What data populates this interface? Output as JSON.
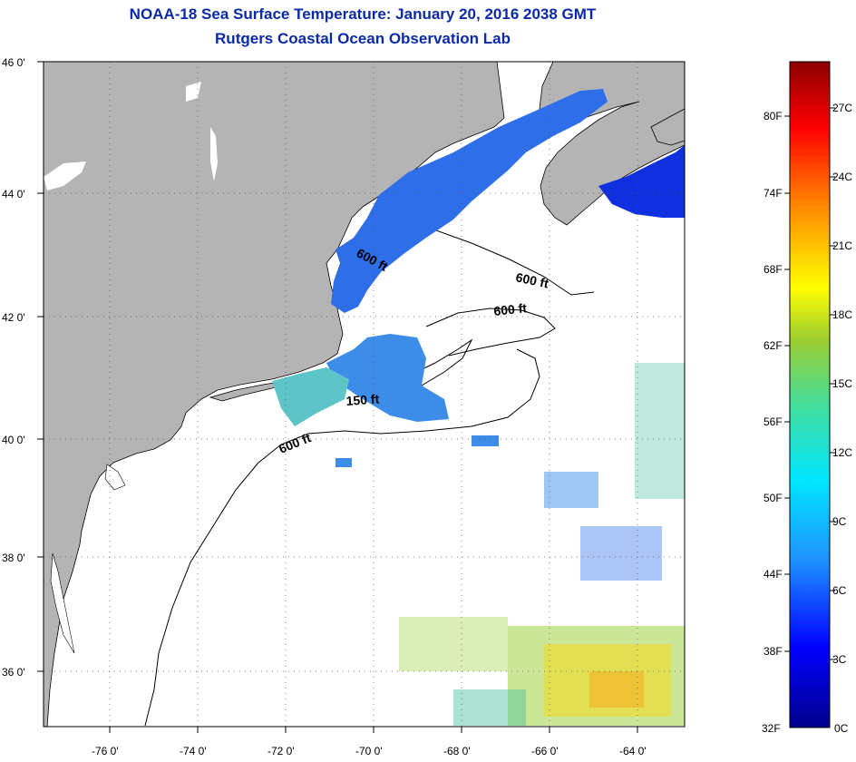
{
  "title": "NOAA-18 Sea Surface Temperature:  January 20, 2016 2038 GMT",
  "subtitle": "Rutgers Coastal Ocean Observation Lab",
  "map": {
    "lon_labels": [
      "-76 0'",
      "-74 0'",
      "-72 0'",
      "-70 0'",
      "-68 0'",
      "-66 0'",
      "-64 0'"
    ],
    "lat_labels": [
      "46 0'",
      "44 0'",
      "42 0'",
      "40 0'",
      "38 0'",
      "36 0'"
    ],
    "contour_labels": [
      {
        "text": "600 ft",
        "rotate": 28
      },
      {
        "text": "600 ft",
        "rotate": 12
      },
      {
        "text": "600 ft",
        "rotate": -6
      },
      {
        "text": "150 ft",
        "rotate": -4
      },
      {
        "text": "600 ft",
        "rotate": -22
      }
    ],
    "land_color": "#b4b4b4",
    "ocean_color": "#ffffff"
  },
  "colorbar": {
    "fahrenheit_labels": [
      "80F",
      "74F",
      "68F",
      "62F",
      "56F",
      "50F",
      "44F",
      "38F",
      "32F"
    ],
    "celsius_labels": [
      "27C",
      "24C",
      "21C",
      "18C",
      "15C",
      "12C",
      "9C",
      "6C",
      "3C",
      "0C"
    ],
    "min_c": 0,
    "max_c": 29,
    "colors": [
      "#00008b",
      "#0000ff",
      "#1e90ff",
      "#00e5ff",
      "#40e0a0",
      "#9acd32",
      "#ffff00",
      "#ff8c00",
      "#ff0000",
      "#8b0000"
    ]
  }
}
